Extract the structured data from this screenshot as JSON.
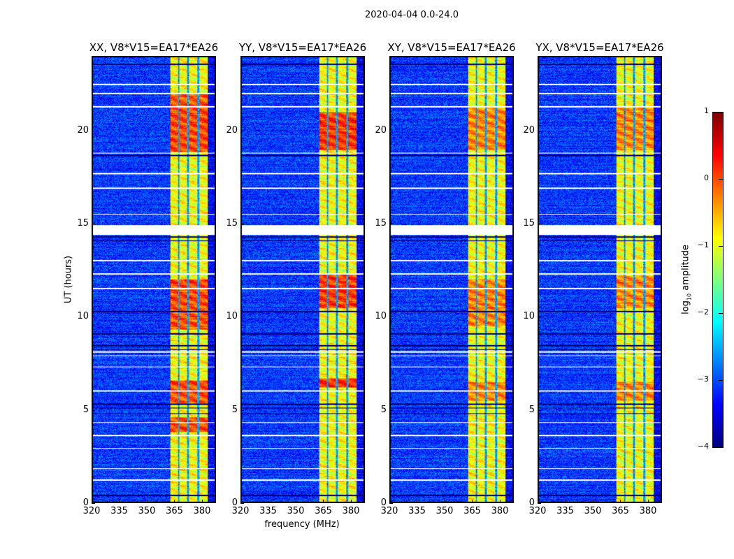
{
  "chart_data": {
    "type": "heatmap",
    "title": "2020-04-04 0.0-24.0",
    "xlabel": "frequency (MHz)",
    "ylabel": "UT (hours)",
    "xlim": [
      320,
      387.6
    ],
    "ylim": [
      0,
      24
    ],
    "xticks": [
      320,
      335,
      350,
      365,
      380
    ],
    "yticks": [
      0,
      5,
      10,
      15,
      20
    ],
    "colormap": "jet",
    "colorbar": {
      "label_parts": [
        "log",
        "10",
        " amplitude"
      ],
      "range": [
        -4,
        1
      ],
      "ticks": [
        1,
        0,
        -1,
        -2,
        -3,
        -4
      ],
      "tick_labels": [
        "1",
        "0",
        "−1",
        "−2",
        "−3",
        "−4"
      ]
    },
    "background_level": -3.1,
    "band_level": -0.9,
    "band_range_mhz": [
      362.8,
      383.4
    ],
    "channel_edges_mhz": [
      367.4,
      372.4,
      378.1
    ],
    "flagged_white_hours": [
      [
        14.4,
        14.95
      ],
      [
        15.5,
        15.55
      ],
      [
        16.9,
        16.95
      ],
      [
        17.7,
        17.75
      ],
      [
        18.8,
        18.85
      ],
      [
        21.3,
        21.35
      ],
      [
        22.0,
        22.05
      ],
      [
        22.5,
        22.55
      ],
      [
        11.5,
        11.55
      ],
      [
        12.3,
        12.35
      ],
      [
        13.0,
        13.05
      ],
      [
        7.3,
        7.35
      ],
      [
        7.9,
        7.95
      ],
      [
        8.1,
        8.15
      ],
      [
        6.0,
        6.05
      ],
      [
        4.3,
        4.35
      ],
      [
        3.6,
        3.65
      ],
      [
        2.9,
        2.95
      ],
      [
        1.8,
        1.85
      ],
      [
        1.2,
        1.25
      ]
    ],
    "flagged_black_hours": [
      0.4,
      4.8,
      5.1,
      5.3,
      8.25,
      8.45,
      9.1,
      10.3,
      14.1,
      14.3,
      18.7,
      23.6
    ],
    "panels": [
      {
        "title": "XX, V8*V15=EA17*EA26",
        "bright_intervals_hours": [
          [
            18.9,
            22.0
          ],
          [
            9.3,
            12.0
          ],
          [
            5.3,
            6.6
          ],
          [
            3.8,
            4.6
          ]
        ],
        "bright_level": 0.0
      },
      {
        "title": "YY, V8*V15=EA17*EA26",
        "bright_intervals_hours": [
          [
            19.0,
            21.0
          ],
          [
            10.5,
            12.3
          ],
          [
            6.2,
            6.7
          ]
        ],
        "bright_level": 0.1
      },
      {
        "title": "XY, V8*V15=EA17*EA26",
        "bright_intervals_hours": [
          [
            19.0,
            21.3
          ],
          [
            9.5,
            12.0
          ],
          [
            5.5,
            6.5
          ]
        ],
        "bright_level": -0.3
      },
      {
        "title": "YX, V8*V15=EA17*EA26",
        "bright_intervals_hours": [
          [
            19.0,
            21.3
          ],
          [
            10.5,
            12.2
          ],
          [
            5.5,
            6.5
          ]
        ],
        "bright_level": -0.3
      }
    ]
  }
}
